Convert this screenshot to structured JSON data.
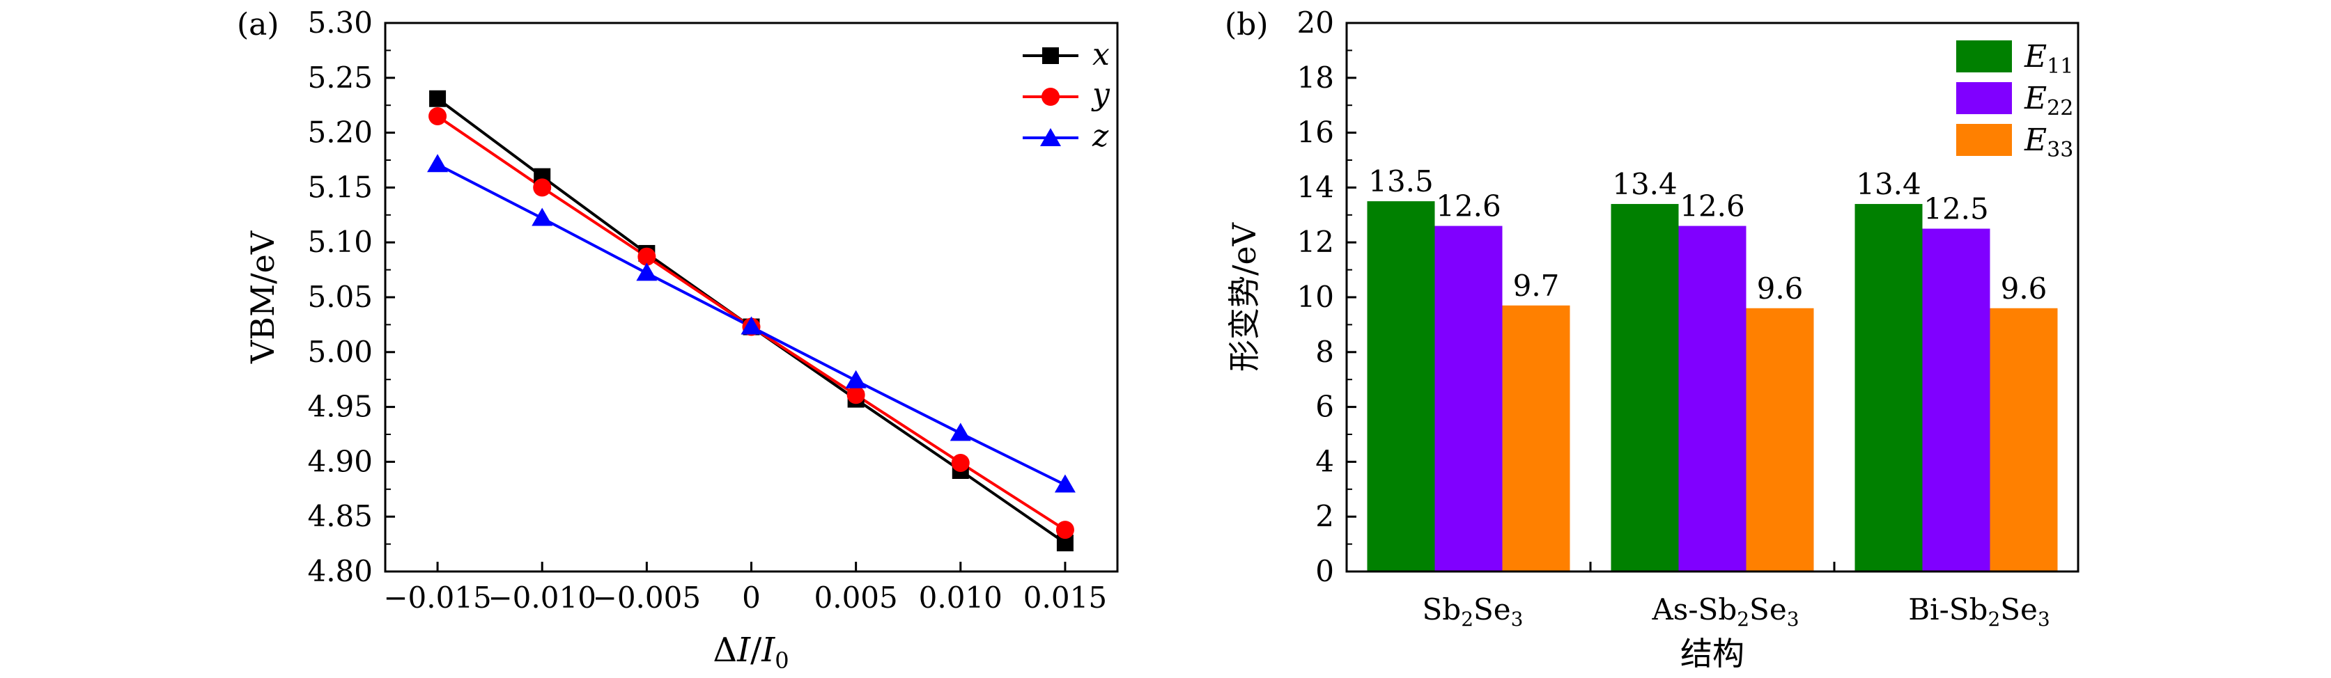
{
  "chart_data": [
    {
      "panel_label": "(a)",
      "type": "line",
      "xlabel": {
        "delta": "Δ",
        "I1": "I",
        "slash": "/",
        "I2": "I",
        "sub": "0"
      },
      "ylabel": "VBM/eV",
      "xlim": [
        -0.0175,
        0.0175
      ],
      "ylim": [
        4.8,
        5.3
      ],
      "x": [
        -0.015,
        -0.01,
        -0.005,
        0,
        0.005,
        0.01,
        0.015
      ],
      "xtick_values": [
        -0.015,
        -0.01,
        -0.005,
        0,
        0.005,
        0.01,
        0.015
      ],
      "xtick_labels": [
        "−0.015",
        "−0.010",
        "−0.005",
        "0",
        "0.005",
        "0.010",
        "0.015"
      ],
      "ytick_values": [
        4.8,
        4.85,
        4.9,
        4.95,
        5.0,
        5.05,
        5.1,
        5.15,
        5.2,
        5.25,
        5.3
      ],
      "ytick_labels": [
        "4.80",
        "4.85",
        "4.90",
        "4.95",
        "5.00",
        "5.05",
        "5.10",
        "5.15",
        "5.20",
        "5.25",
        "5.30"
      ],
      "legend_position": "top-right",
      "series": [
        {
          "name": "x",
          "color": "#000000",
          "marker": "square",
          "values": [
            5.231,
            5.16,
            5.09,
            5.023,
            4.957,
            4.892,
            4.826
          ]
        },
        {
          "name": "y",
          "color": "#ff0000",
          "marker": "circle",
          "values": [
            5.215,
            5.15,
            5.087,
            5.023,
            4.961,
            4.899,
            4.838
          ]
        },
        {
          "name": "z",
          "color": "#0000ff",
          "marker": "triangle",
          "values": [
            5.171,
            5.122,
            5.072,
            5.023,
            4.974,
            4.926,
            4.879
          ]
        }
      ]
    },
    {
      "panel_label": "(b)",
      "type": "bar",
      "xlabel": "结构",
      "ylabel": "形变势/eV",
      "ylim": [
        0,
        20
      ],
      "ytick_values": [
        0,
        2,
        4,
        6,
        8,
        10,
        12,
        14,
        16,
        18,
        20
      ],
      "ytick_labels": [
        "0",
        "2",
        "4",
        "6",
        "8",
        "10",
        "12",
        "14",
        "16",
        "18",
        "20"
      ],
      "categories": [
        {
          "prefix": "",
          "a": "Sb",
          "a_sub": "2",
          "b": "Se",
          "b_sub": "3"
        },
        {
          "prefix": "As-",
          "a": "Sb",
          "a_sub": "2",
          "b": "Se",
          "b_sub": "3"
        },
        {
          "prefix": "Bi-",
          "a": "Sb",
          "a_sub": "2",
          "b": "Se",
          "b_sub": "3"
        }
      ],
      "legend_position": "top-right",
      "series": [
        {
          "name": "E",
          "sub": "11",
          "color": "#008000",
          "values": [
            13.5,
            13.4,
            13.4
          ],
          "labels": [
            "13.5",
            "13.4",
            "13.4"
          ]
        },
        {
          "name": "E",
          "sub": "22",
          "color": "#8000ff",
          "values": [
            12.6,
            12.6,
            12.5
          ],
          "labels": [
            "12.6",
            "12.6",
            "12.5"
          ]
        },
        {
          "name": "E",
          "sub": "33",
          "color": "#ff8000",
          "values": [
            9.7,
            9.6,
            9.6
          ],
          "labels": [
            "9.7",
            "9.6",
            "9.6"
          ]
        }
      ]
    }
  ]
}
